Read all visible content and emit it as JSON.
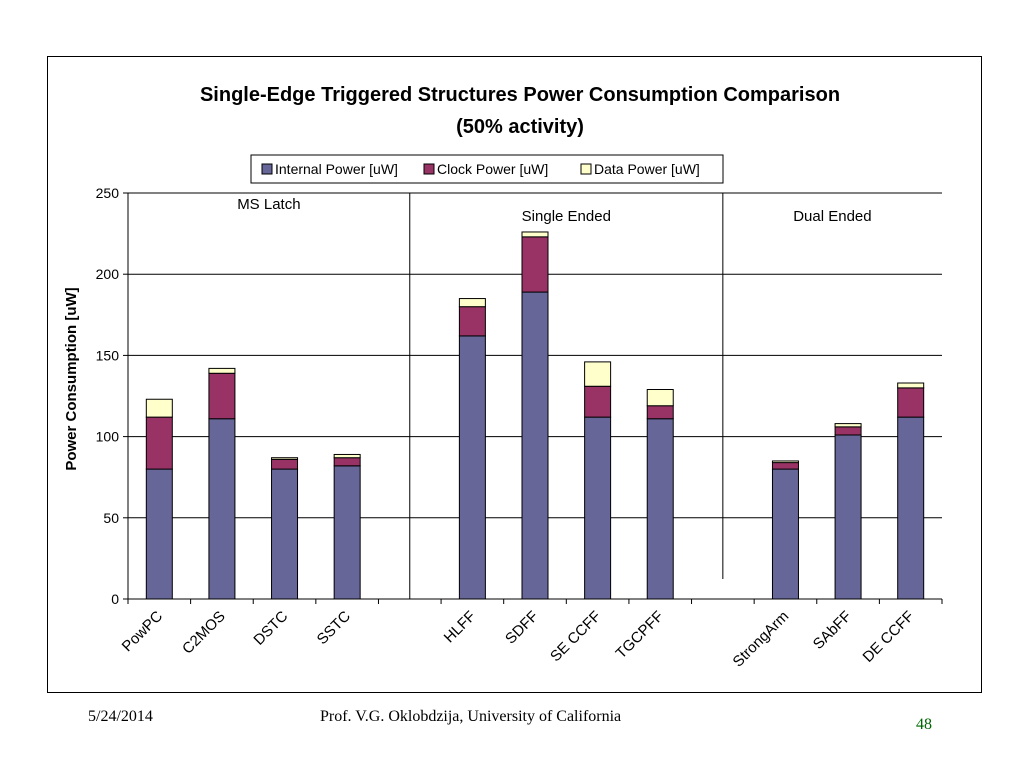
{
  "slide": {
    "date": "5/24/2014",
    "author": "Prof. V.G. Oklobdzija, University of California",
    "page_number": "48"
  },
  "chart_data": {
    "type": "bar",
    "stacked": true,
    "title": "Single-Edge Triggered Structures Power Consumption Comparison",
    "subtitle": "(50% activity)",
    "xlabel": "",
    "ylabel": "Power Consumption [uW]",
    "ylim": [
      0,
      250
    ],
    "yticks": [
      0,
      50,
      100,
      150,
      200,
      250
    ],
    "grid": true,
    "legend_position": "top",
    "slots": [
      "PowPC",
      "C2MOS",
      "DSTC",
      "SSTC",
      "",
      "HLFF",
      "SDFF",
      "SE CCFF",
      "TGCPFF",
      "",
      "StrongArm",
      "SAbFF",
      "DE CCFF"
    ],
    "categories": [
      "PowPC",
      "C2MOS",
      "DSTC",
      "SSTC",
      "HLFF",
      "SDFF",
      "SE CCFF",
      "TGCPFF",
      "StrongArm",
      "SAbFF",
      "DE CCFF"
    ],
    "series": [
      {
        "name": "Internal Power [uW]",
        "color": "#666699",
        "values": [
          80,
          111,
          80,
          82,
          162,
          189,
          112,
          111,
          80,
          101,
          112
        ]
      },
      {
        "name": "Clock Power [uW]",
        "color": "#993366",
        "values": [
          32,
          28,
          6,
          5,
          18,
          34,
          19,
          8,
          4,
          5,
          18
        ]
      },
      {
        "name": "Data Power [uW]",
        "color": "#ffffcc",
        "values": [
          11,
          3,
          1,
          2,
          5,
          3,
          15,
          10,
          1,
          2,
          3
        ]
      }
    ],
    "groups": [
      {
        "label": "MS Latch",
        "start": 0,
        "end": 4
      },
      {
        "label": "Single Ended",
        "start": 4,
        "end": 9
      },
      {
        "label": "Dual Ended",
        "start": 9,
        "end": 13
      }
    ]
  }
}
